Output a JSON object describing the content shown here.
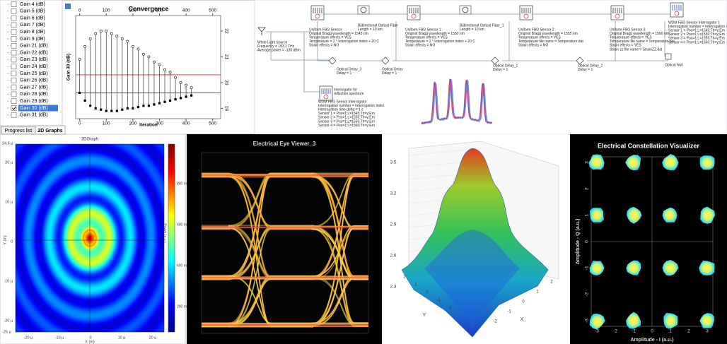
{
  "sidebar": {
    "items": [
      "Gain 4 (dB)",
      "Gain 5 (dB)",
      "Gain 6 (dB)",
      "Gain 7 (dB)",
      "Gain 8 (dB)",
      "Gain 9 (dB)",
      "Gain 21 (dB)",
      "Gain 22 (dB)",
      "Gain 23 (dB)",
      "Gain 24 (dB)",
      "Gain 25 (dB)",
      "Gain 26 (dB)",
      "Gain 27 (dB)",
      "Gain 28 (dB)",
      "Gain 29 (dB)",
      "Gain 30 (dB)",
      "Gain 31 (dB)"
    ],
    "tabs": [
      "Progress list",
      "2D Graphs"
    ]
  },
  "convergence": {
    "title": "Convergence",
    "x_label": "Iteration",
    "y_label": "Gain 30 (dB)",
    "xticks": [
      0,
      100,
      200,
      300,
      400,
      500
    ],
    "xlim": [
      -15,
      530
    ],
    "yticks": [
      19,
      20,
      21,
      22
    ],
    "ylim": [
      18.6,
      22.6
    ],
    "x": [
      0,
      20,
      40,
      60,
      80,
      100,
      120,
      140,
      160,
      180,
      200,
      220,
      240,
      260,
      280,
      300,
      320,
      340,
      360,
      380,
      400,
      420
    ],
    "upper": [
      20.9,
      21.4,
      21.7,
      21.9,
      22.0,
      22.0,
      21.9,
      21.8,
      21.7,
      21.6,
      21.4,
      21.3,
      21.1,
      21.0,
      20.8,
      20.7,
      20.5,
      20.4,
      20.2,
      20.0,
      19.9,
      19.8
    ],
    "lower": [
      19.6,
      19.3,
      19.1,
      19.0,
      18.95,
      18.9,
      18.9,
      18.9,
      18.95,
      19.0,
      19.0,
      19.05,
      19.1,
      19.1,
      19.15,
      19.2,
      19.25,
      19.3,
      19.35,
      19.4,
      19.45,
      19.5
    ],
    "ref_lines": [
      20.3,
      19.6
    ]
  },
  "schematic": {
    "components": [
      {
        "lines": [
          "Uniform FBG Sensor",
          "Original Bragg wavelength = 1545 nm",
          "Temperature effects = YES",
          "Temperature = 2 * Interrogation index + 20 C",
          "Strain effects = NO"
        ]
      },
      {
        "lines": [
          "Bidirectional Optical Fiber",
          "Length = 10 km"
        ]
      },
      {
        "lines": [
          "Uniform FBG Sensor 1",
          "Original Bragg wavelength = 1550 nm",
          "Temperature effects = YES",
          "Temperature = 2 * Interrogation index + 20 C",
          "Strain effects = NO"
        ]
      },
      {
        "lines": [
          "Bidirectional Optical Fiber_1",
          "Length = 10 km"
        ]
      },
      {
        "lines": [
          "Uniform FBG Sensor 2",
          "Original Bragg wavelength = 1555 nm",
          "Temperature effects = YES",
          "Temperature file name = Temperature.dat",
          "Strain effects = NO"
        ]
      },
      {
        "lines": [
          "Uniform FBG Sensor 3",
          "Original Bragg wavelength = 1560 nm",
          "Temperature effects = YES",
          "Temperature file name = Temperature.dat",
          "Strain effects = YES",
          "Strain zz file name = StrainZZ.dat"
        ]
      },
      {
        "lines": [
          "WDM FBG Sensor Interrogator 1",
          "Interrogation number = Interrogation index",
          "Sensor 1 = Pos=1;L=1545;Th=y;Em",
          "Sensor 2 = Pos=1;L=1550;Th=y;Em",
          "Sensor 3 = Pos=1;L=1555;Th=y;Em",
          "Sensor 4 = Pos=1;L=1560;Th=y;Em"
        ]
      },
      {
        "lines": [
          "Optical Delay_3",
          "Delay = 1"
        ]
      },
      {
        "lines": [
          "Optical Delay",
          "Delay = 1"
        ]
      },
      {
        "lines": [
          "Optical Delay_1",
          "Delay = 1"
        ]
      },
      {
        "lines": [
          "Optical Delay_2",
          "Delay = 1"
        ]
      },
      {
        "lines": [
          "Optical Null"
        ]
      },
      {
        "lines": [
          "Interrogator for",
          "reflection spectrum"
        ]
      },
      {
        "lines": [
          "WDM FBG Sensor Interrogator",
          "Interrogation number = Interrogation index",
          "Interrogation time delta = 1 s",
          "Sensor 1 = Pos=1;L=1545;Th=y;Em",
          "Sensor 2 = Pos=1;L=1550;Th=y;Em",
          "Sensor 3 = Pos=1;L=1555;Th=y;Em",
          "Sensor 4 = Pos=1;L=1560;Th=y;Em"
        ]
      },
      {
        "lines": [
          "White Light Source",
          "Frequency = 193.1 THz",
          "Average power = -130 dBm"
        ]
      }
    ]
  },
  "graph3d": {
    "title": "3DGraph",
    "top_label": "24.5 µ",
    "yticks": [
      "20 µ",
      "10 µ",
      "0",
      "-10 µ",
      "-20 µ"
    ],
    "bottom_label": "-25 µ",
    "xticks": [
      "-20 µ",
      "-10 µ",
      "0",
      "10 µ",
      "20 µ"
    ],
    "x_label": "X (m)",
    "y_label": "Y (m)",
    "colorbar_ticks": [
      "800 m",
      "600 m",
      "400 m",
      "200 m"
    ],
    "colorbar_label": "Power (a.u.)"
  },
  "eye": {
    "title": "Electrical Eye Viewer_3"
  },
  "surface": {
    "zticks": [
      3.5,
      3.2,
      2.9,
      2.6,
      2.3
    ],
    "xticks": [
      -2,
      -1,
      0,
      1,
      2
    ],
    "yticks": [
      2,
      1,
      0,
      -1,
      -2
    ],
    "x_label": "X",
    "y_label": "Y"
  },
  "constellation": {
    "title": "Electrical Constellation Visualizer",
    "x_label": "Amplitude - I (a.u.)",
    "y_label": "Amplitude - Q (a.u.)",
    "ticks": [
      -3,
      -2,
      -1,
      0,
      1,
      2,
      3
    ]
  }
}
